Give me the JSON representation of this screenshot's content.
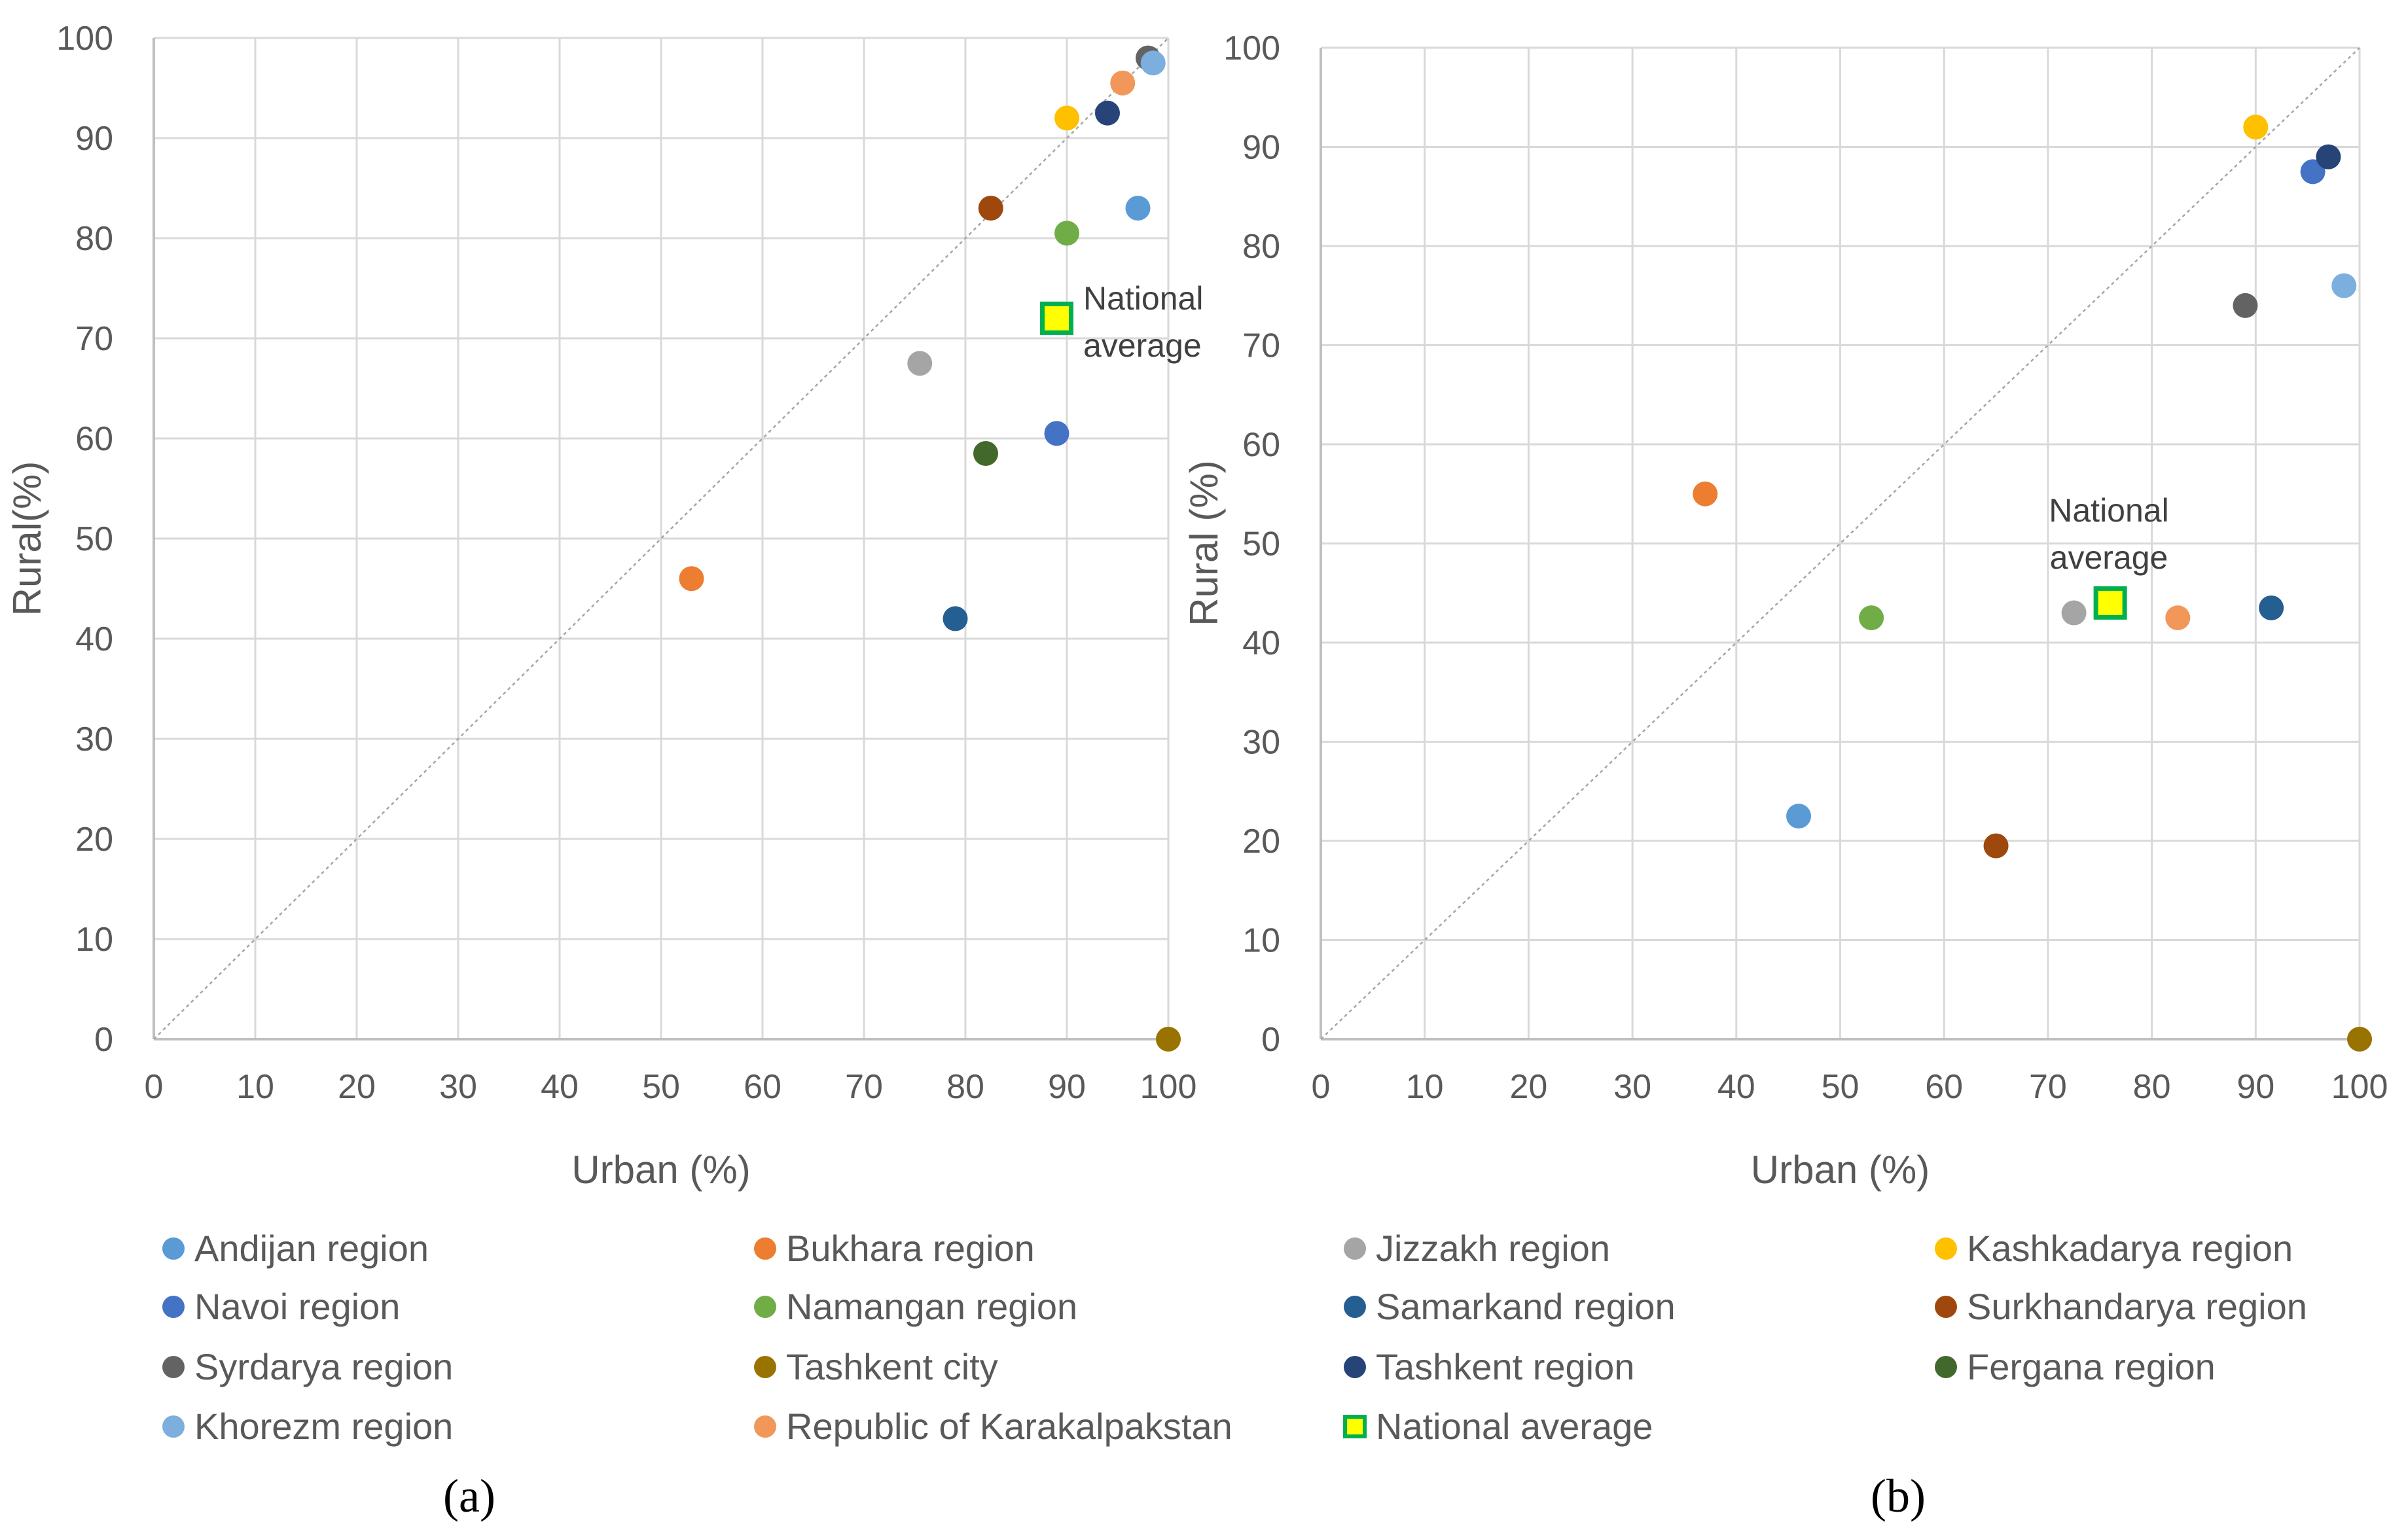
{
  "chart_data": [
    {
      "id": "a",
      "panel_label": "(a)",
      "type": "scatter",
      "xlabel": "Urban (%)",
      "ylabel": "Rural(%)",
      "xlim": [
        0,
        100
      ],
      "ylim": [
        0,
        100
      ],
      "x_ticks": [
        0,
        10,
        20,
        30,
        40,
        50,
        60,
        70,
        80,
        90,
        100
      ],
      "y_ticks": [
        0,
        10,
        20,
        30,
        40,
        50,
        60,
        70,
        80,
        90,
        100
      ],
      "grid": true,
      "diagonal": true,
      "annotation": [
        "National",
        "average"
      ],
      "points": [
        {
          "series": "Andijan region",
          "x": 97,
          "y": 83
        },
        {
          "series": "Bukhara region",
          "x": 53,
          "y": 46
        },
        {
          "series": "Jizzakh region",
          "x": 75.5,
          "y": 67.5
        },
        {
          "series": "Kashkadarya region",
          "x": 90,
          "y": 92
        },
        {
          "series": "Navoi region",
          "x": 89,
          "y": 60.5
        },
        {
          "series": "Namangan region",
          "x": 90,
          "y": 80.5
        },
        {
          "series": "Samarkand region",
          "x": 79,
          "y": 42
        },
        {
          "series": "Surkhandarya region",
          "x": 82.5,
          "y": 83
        },
        {
          "series": "Syrdarya region",
          "x": 98,
          "y": 98
        },
        {
          "series": "Tashkent city",
          "x": 100,
          "y": 0
        },
        {
          "series": "Tashkent region",
          "x": 94,
          "y": 92.5
        },
        {
          "series": "Fergana region",
          "x": 82,
          "y": 58.5
        },
        {
          "series": "Khorezm region",
          "x": 98.5,
          "y": 97.5
        },
        {
          "series": "Republic of Karakalpakstan",
          "x": 95.5,
          "y": 95.5
        },
        {
          "series": "National average",
          "x": 89,
          "y": 72
        }
      ]
    },
    {
      "id": "b",
      "panel_label": "(b)",
      "type": "scatter",
      "xlabel": "Urban (%)",
      "ylabel": "Rural (%)",
      "xlim": [
        0,
        100
      ],
      "ylim": [
        0,
        100
      ],
      "x_ticks": [
        0,
        10,
        20,
        30,
        40,
        50,
        60,
        70,
        80,
        90,
        100
      ],
      "y_ticks": [
        0,
        10,
        20,
        30,
        40,
        50,
        60,
        70,
        80,
        90,
        100
      ],
      "grid": true,
      "diagonal": true,
      "annotation": [
        "National",
        "average"
      ],
      "points": [
        {
          "series": "Andijan region",
          "x": 46,
          "y": 22.5
        },
        {
          "series": "Bukhara region",
          "x": 37,
          "y": 55
        },
        {
          "series": "Jizzakh region",
          "x": 72.5,
          "y": 43
        },
        {
          "series": "Kashkadarya region",
          "x": 90,
          "y": 92
        },
        {
          "series": "Navoi region",
          "x": 95.5,
          "y": 87.5
        },
        {
          "series": "Namangan region",
          "x": 53,
          "y": 42.5
        },
        {
          "series": "Samarkand region",
          "x": 91.5,
          "y": 43.5
        },
        {
          "series": "Surkhandarya region",
          "x": 65,
          "y": 19.5
        },
        {
          "series": "Syrdarya region",
          "x": 89,
          "y": 74
        },
        {
          "series": "Tashkent city",
          "x": 100,
          "y": 0
        },
        {
          "series": "Tashkent region",
          "x": 97,
          "y": 89
        },
        {
          "series": "Khorezm region",
          "x": 98.5,
          "y": 76
        },
        {
          "series": "Republic of Karakalpakstan",
          "x": 82.5,
          "y": 42.5
        },
        {
          "series": "National average",
          "x": 76,
          "y": 44
        }
      ]
    }
  ],
  "legend": [
    {
      "name": "Andijan region",
      "color": "#5B9BD5",
      "marker": "circle"
    },
    {
      "name": "Bukhara region",
      "color": "#ED7D31",
      "marker": "circle"
    },
    {
      "name": "Jizzakh region",
      "color": "#A5A5A5",
      "marker": "circle"
    },
    {
      "name": "Kashkadarya region",
      "color": "#FFC000",
      "marker": "circle"
    },
    {
      "name": "Navoi region",
      "color": "#4472C4",
      "marker": "circle"
    },
    {
      "name": "Namangan region",
      "color": "#70AD47",
      "marker": "circle"
    },
    {
      "name": "Samarkand region",
      "color": "#255E91",
      "marker": "circle"
    },
    {
      "name": "Surkhandarya region",
      "color": "#9E480E",
      "marker": "circle"
    },
    {
      "name": "Syrdarya region",
      "color": "#636363",
      "marker": "circle"
    },
    {
      "name": "Tashkent city",
      "color": "#997300",
      "marker": "circle"
    },
    {
      "name": "Tashkent region",
      "color": "#264478",
      "marker": "circle"
    },
    {
      "name": "Fergana region",
      "color": "#43682B",
      "marker": "circle"
    },
    {
      "name": "Khorezm region",
      "color": "#7CAFDD",
      "marker": "circle"
    },
    {
      "name": "Republic of Karakalpakstan",
      "color": "#F1975A",
      "marker": "circle"
    },
    {
      "name": "National average",
      "color": "#FFFF00",
      "stroke": "#00B050",
      "marker": "square"
    }
  ],
  "colors": {
    "grid": "#D9D9D9",
    "axis": "#BFBFBF",
    "diagonal": "#A6A6A6",
    "text": "#595959"
  }
}
